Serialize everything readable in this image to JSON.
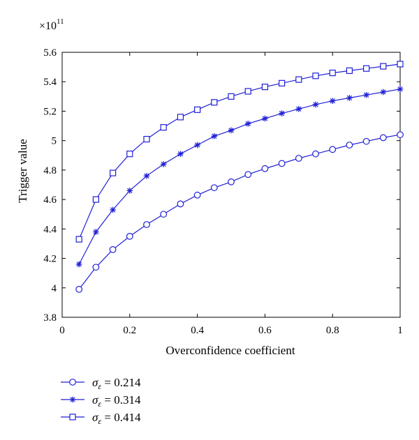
{
  "chart_data": {
    "type": "line",
    "xlabel": "Overconfidence coefficient",
    "ylabel": "Trigger value",
    "y_multiplier": {
      "base": "×10",
      "exponent": "11"
    },
    "xlim": [
      0,
      1
    ],
    "ylim": [
      3.8,
      5.6
    ],
    "xticks": [
      0,
      0.2,
      0.4,
      0.6,
      0.8,
      1
    ],
    "xtick_labels": [
      "0",
      "0.2",
      "0.4",
      "0.6",
      "0.8",
      "1"
    ],
    "yticks": [
      3.8,
      4,
      4.2,
      4.4,
      4.6,
      4.8,
      5,
      5.2,
      5.4,
      5.6
    ],
    "ytick_labels": [
      "3.8",
      "4",
      "4.2",
      "4.4",
      "4.6",
      "4.8",
      "5",
      "5.2",
      "5.4",
      "5.6"
    ],
    "grid": false,
    "legend_position": "below",
    "line_color": "#1f1fd6",
    "x": [
      0.05,
      0.1,
      0.15,
      0.2,
      0.25,
      0.3,
      0.35,
      0.4,
      0.45,
      0.5,
      0.55,
      0.6,
      0.65,
      0.7,
      0.75,
      0.8,
      0.85,
      0.9,
      0.95,
      1.0
    ],
    "series": [
      {
        "name": "σε = 0.214",
        "legend_symbol": "σ",
        "legend_sub": "ε",
        "legend_value": " = 0.214",
        "marker": "circle",
        "values": [
          3.99,
          4.14,
          4.26,
          4.35,
          4.43,
          4.5,
          4.57,
          4.63,
          4.68,
          4.72,
          4.77,
          4.81,
          4.845,
          4.88,
          4.91,
          4.94,
          4.97,
          4.995,
          5.02,
          5.04
        ]
      },
      {
        "name": "σε = 0.314",
        "legend_symbol": "σ",
        "legend_sub": "ε",
        "legend_value": " = 0.314",
        "marker": "asterisk",
        "values": [
          4.16,
          4.38,
          4.53,
          4.66,
          4.76,
          4.84,
          4.91,
          4.97,
          5.03,
          5.07,
          5.115,
          5.15,
          5.185,
          5.215,
          5.245,
          5.27,
          5.29,
          5.31,
          5.33,
          5.35
        ]
      },
      {
        "name": "σε = 0.414",
        "legend_symbol": "σ",
        "legend_sub": "ε",
        "legend_value": " = 0.414",
        "marker": "square",
        "values": [
          4.33,
          4.6,
          4.78,
          4.91,
          5.01,
          5.09,
          5.16,
          5.21,
          5.26,
          5.3,
          5.335,
          5.365,
          5.39,
          5.415,
          5.44,
          5.46,
          5.475,
          5.49,
          5.505,
          5.52
        ]
      }
    ]
  }
}
